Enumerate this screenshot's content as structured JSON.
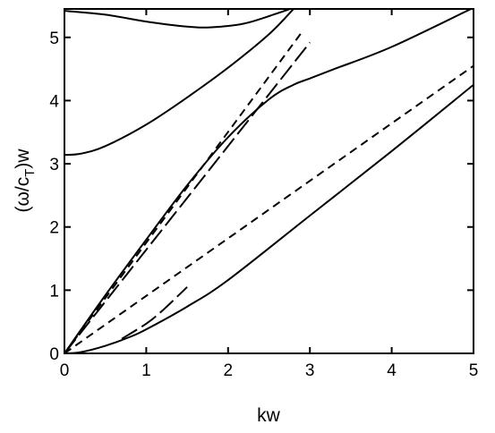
{
  "chart_data": {
    "type": "line",
    "title": "",
    "xlabel": "kw",
    "ylabel": {
      "prefix": "(ω/c",
      "subscript": "T",
      "suffix": ")w"
    },
    "xlim": [
      0,
      5
    ],
    "ylim": [
      0,
      5.45
    ],
    "xticks": [
      "0",
      "1",
      "2",
      "3",
      "4",
      "5"
    ],
    "yticks": [
      "0",
      "1",
      "2",
      "3",
      "4",
      "5"
    ],
    "grid": false,
    "legend": "none",
    "series": [
      {
        "style": "solid",
        "x": [
          0,
          0.5,
          1,
          1.5,
          1.8,
          2.2,
          2.6,
          2.8
        ],
        "y": [
          5.42,
          5.36,
          5.25,
          5.17,
          5.16,
          5.22,
          5.38,
          5.47
        ]
      },
      {
        "style": "solid",
        "x": [
          0,
          0.2,
          0.5,
          1,
          1.5,
          2,
          2.5,
          2.8
        ],
        "y": [
          3.14,
          3.16,
          3.28,
          3.62,
          4.05,
          4.52,
          5.05,
          5.45
        ]
      },
      {
        "style": "solid",
        "x": [
          0,
          0.5,
          1,
          1.5,
          2,
          2.5,
          2.8,
          3,
          3.3,
          4,
          5
        ],
        "y": [
          0,
          0.92,
          1.8,
          2.66,
          3.42,
          4.02,
          4.25,
          4.35,
          4.5,
          4.85,
          5.47
        ]
      },
      {
        "style": "solid",
        "x": [
          0,
          0.2,
          0.5,
          0.8,
          1,
          1.5,
          2,
          3,
          4,
          5
        ],
        "y": [
          0,
          0.02,
          0.12,
          0.26,
          0.38,
          0.74,
          1.16,
          2.18,
          3.2,
          4.25
        ]
      },
      {
        "style": "dashed",
        "x": [
          0,
          5
        ],
        "y": [
          0,
          4.55
        ]
      },
      {
        "style": "dashed",
        "x": [
          0,
          2.9
        ],
        "y": [
          0,
          5.08
        ]
      },
      {
        "style": "long-dash",
        "x": [
          0,
          3.0
        ],
        "y": [
          0,
          4.92
        ]
      },
      {
        "style": "long-dash",
        "x": [
          0.7,
          1.0,
          1.2,
          1.5
        ],
        "y": [
          0.23,
          0.47,
          0.68,
          1.05
        ]
      }
    ]
  }
}
